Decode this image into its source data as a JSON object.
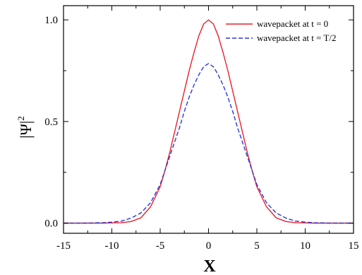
{
  "chart_data": {
    "type": "line",
    "xlabel": "X",
    "ylabel": "|Ψ|",
    "ylabel_superscript": "2",
    "xlim": [
      -15,
      15
    ],
    "ylim": [
      -0.05,
      1.07
    ],
    "x_ticks": [
      -15,
      -10,
      -5,
      0,
      5,
      10,
      15
    ],
    "x_tick_labels": [
      "-15",
      "-10",
      "-5",
      "0",
      "5",
      "10",
      "15"
    ],
    "y_ticks": [
      0.0,
      0.5,
      1.0
    ],
    "y_tick_labels": [
      "0.0",
      "0.5",
      "1.0"
    ],
    "grid": false,
    "legend_position": "top-right",
    "series": [
      {
        "name": "wavepacket at t = 0",
        "color": "#e8202a",
        "style": "solid",
        "x": [
          -15,
          -14,
          -13,
          -12,
          -11,
          -10,
          -9,
          -8,
          -7,
          -6,
          -5,
          -4.5,
          -4,
          -3.5,
          -3,
          -2.5,
          -2,
          -1.5,
          -1,
          -0.5,
          0,
          0.5,
          1,
          1.5,
          2,
          2.5,
          3,
          3.5,
          4,
          4.5,
          5,
          6,
          7,
          8,
          9,
          10,
          11,
          12,
          13,
          14,
          15
        ],
        "y": [
          0,
          0,
          0,
          0,
          0,
          0.001,
          0.002,
          0.008,
          0.026,
          0.08,
          0.179,
          0.26,
          0.35,
          0.45,
          0.55,
          0.65,
          0.75,
          0.84,
          0.922,
          0.98,
          1.0,
          0.98,
          0.922,
          0.84,
          0.75,
          0.65,
          0.55,
          0.45,
          0.35,
          0.26,
          0.179,
          0.08,
          0.026,
          0.008,
          0.002,
          0.001,
          0,
          0,
          0,
          0,
          0
        ]
      },
      {
        "name": "wavepacket at t = T/2",
        "color": "#2a3bd6",
        "style": "dashed",
        "x": [
          -15,
          -14,
          -13,
          -12,
          -11,
          -10,
          -9,
          -8,
          -7,
          -6,
          -5,
          -4.5,
          -4,
          -3.5,
          -3,
          -2.5,
          -2,
          -1.5,
          -1,
          -0.5,
          0,
          0.5,
          1,
          1.5,
          2,
          2.5,
          3,
          3.5,
          4,
          4.5,
          5,
          6,
          7,
          8,
          9,
          10,
          11,
          12,
          13,
          14,
          15
        ],
        "y": [
          0,
          0,
          0,
          0.001,
          0.002,
          0.005,
          0.01,
          0.025,
          0.05,
          0.1,
          0.19,
          0.26,
          0.33,
          0.4,
          0.47,
          0.55,
          0.62,
          0.68,
          0.73,
          0.77,
          0.785,
          0.77,
          0.73,
          0.68,
          0.62,
          0.55,
          0.47,
          0.4,
          0.33,
          0.26,
          0.19,
          0.1,
          0.05,
          0.025,
          0.01,
          0.005,
          0.002,
          0.001,
          0,
          0,
          0
        ]
      }
    ]
  }
}
